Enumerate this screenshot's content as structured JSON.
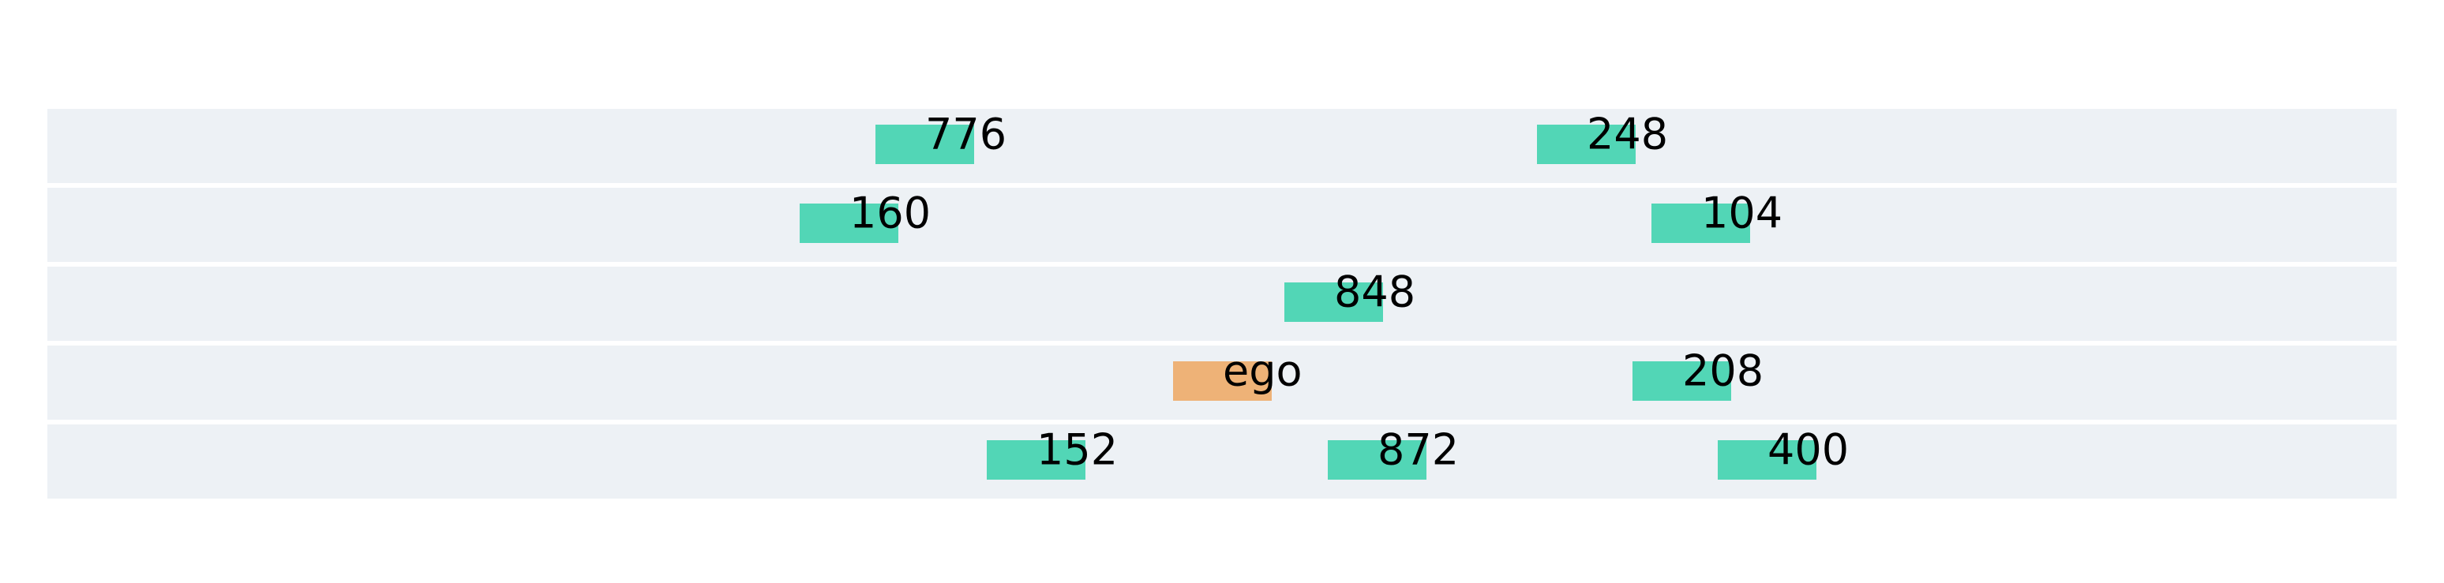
{
  "colors": {
    "background": "#ffffff",
    "lane": "#edf1f5",
    "vehicle": "#52d6b6",
    "ego": "#eeb277",
    "text": "#000000"
  },
  "lanes": [
    {
      "vehicles": [
        {
          "label": "776",
          "role": "vehicle"
        },
        {
          "label": "248",
          "role": "vehicle"
        }
      ]
    },
    {
      "vehicles": [
        {
          "label": "160",
          "role": "vehicle"
        },
        {
          "label": "104",
          "role": "vehicle"
        }
      ]
    },
    {
      "vehicles": [
        {
          "label": "848",
          "role": "vehicle"
        }
      ]
    },
    {
      "vehicles": [
        {
          "label": "ego",
          "role": "ego"
        },
        {
          "label": "208",
          "role": "vehicle"
        }
      ]
    },
    {
      "vehicles": [
        {
          "label": "152",
          "role": "vehicle"
        },
        {
          "label": "872",
          "role": "vehicle"
        },
        {
          "label": "400",
          "role": "vehicle"
        }
      ]
    }
  ]
}
